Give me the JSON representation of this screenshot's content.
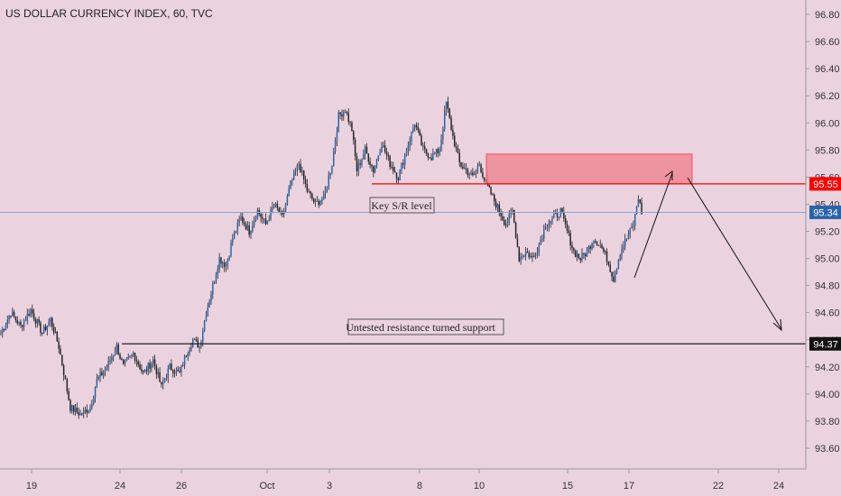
{
  "chart_data": {
    "type": "candlestick",
    "title": "US DOLLAR CURRENCY INDEX, 60, TVC",
    "ylim": [
      93.4,
      96.9
    ],
    "y_ticks": [
      93.6,
      93.8,
      94.0,
      94.2,
      94.4,
      94.6,
      94.8,
      95.0,
      95.2,
      95.4,
      95.6,
      95.8,
      96.0,
      96.2,
      96.4,
      96.6,
      96.8
    ],
    "y_tick_labels": [
      "93.60",
      "93.80",
      "94.00",
      "94.20",
      "94.40",
      "94.60",
      "94.80",
      "95.00",
      "95.20",
      "95.40",
      "95.60",
      "95.80",
      "96.00",
      "96.20",
      "96.40",
      "96.60",
      "96.80"
    ],
    "x_ticks": [
      "19",
      "24",
      "26",
      "Oct",
      "3",
      "8",
      "10",
      "15",
      "17",
      "22",
      "24"
    ],
    "grid": false,
    "colors": {
      "background": "#ead3df",
      "candle_up": "#2b63a8",
      "candle_down": "#222222",
      "resistance_line": "#ff0000",
      "zone_fill": "#ee8795",
      "support_line": "#222222",
      "current_price_line": "#8aa2c8",
      "current_price_badge": "#2b63a8",
      "resistance_badge": "#ff0000",
      "support_badge": "#111111",
      "arrow": "#111111"
    },
    "levels": {
      "key_sr": 95.55,
      "current": 95.34,
      "support": 94.37,
      "zone_top": 95.77,
      "zone_bottom": 95.55
    },
    "price_labels": [
      "95.55",
      "95.34",
      "94.37"
    ],
    "annotations": [
      "Key S/R level",
      "Untested resistance turned support"
    ],
    "anchors": [
      [
        0,
        94.45
      ],
      [
        6,
        94.6
      ],
      [
        12,
        94.5
      ],
      [
        18,
        94.62
      ],
      [
        25,
        94.45
      ],
      [
        30,
        94.55
      ],
      [
        35,
        94.35
      ],
      [
        42,
        93.9
      ],
      [
        48,
        93.85
      ],
      [
        54,
        93.9
      ],
      [
        58,
        94.1
      ],
      [
        64,
        94.2
      ],
      [
        70,
        94.35
      ],
      [
        74,
        94.2
      ],
      [
        80,
        94.3
      ],
      [
        86,
        94.15
      ],
      [
        92,
        94.25
      ],
      [
        97,
        94.05
      ],
      [
        102,
        94.2
      ],
      [
        108,
        94.15
      ],
      [
        112,
        94.3
      ],
      [
        116,
        94.4
      ],
      [
        120,
        94.35
      ],
      [
        124,
        94.6
      ],
      [
        128,
        94.8
      ],
      [
        132,
        95.0
      ],
      [
        136,
        94.95
      ],
      [
        140,
        95.15
      ],
      [
        145,
        95.3
      ],
      [
        150,
        95.2
      ],
      [
        155,
        95.35
      ],
      [
        160,
        95.25
      ],
      [
        165,
        95.4
      ],
      [
        170,
        95.3
      ],
      [
        175,
        95.55
      ],
      [
        180,
        95.7
      ],
      [
        185,
        95.5
      ],
      [
        190,
        95.4
      ],
      [
        195,
        95.45
      ],
      [
        200,
        95.7
      ],
      [
        204,
        96.05
      ],
      [
        208,
        96.1
      ],
      [
        212,
        95.95
      ],
      [
        215,
        95.65
      ],
      [
        220,
        95.8
      ],
      [
        225,
        95.65
      ],
      [
        230,
        95.85
      ],
      [
        235,
        95.7
      ],
      [
        240,
        95.6
      ],
      [
        245,
        95.8
      ],
      [
        250,
        96.0
      ],
      [
        255,
        95.8
      ],
      [
        260,
        95.75
      ],
      [
        265,
        95.8
      ],
      [
        269,
        96.15
      ],
      [
        273,
        95.9
      ],
      [
        277,
        95.7
      ],
      [
        281,
        95.65
      ],
      [
        285,
        95.6
      ],
      [
        289,
        95.7
      ],
      [
        292,
        95.58
      ],
      [
        297,
        95.45
      ],
      [
        301,
        95.35
      ],
      [
        305,
        95.25
      ],
      [
        309,
        95.35
      ],
      [
        313,
        95.0
      ],
      [
        317,
        95.05
      ],
      [
        321,
        95.0
      ],
      [
        325,
        95.1
      ],
      [
        329,
        95.25
      ],
      [
        334,
        95.3
      ],
      [
        338,
        95.35
      ],
      [
        342,
        95.2
      ],
      [
        346,
        95.05
      ],
      [
        350,
        95.0
      ],
      [
        354,
        95.05
      ],
      [
        358,
        95.15
      ],
      [
        362,
        95.1
      ],
      [
        366,
        95.0
      ],
      [
        370,
        94.85
      ],
      [
        374,
        95.05
      ],
      [
        378,
        95.15
      ],
      [
        382,
        95.25
      ],
      [
        385,
        95.45
      ],
      [
        387,
        95.34
      ]
    ]
  }
}
